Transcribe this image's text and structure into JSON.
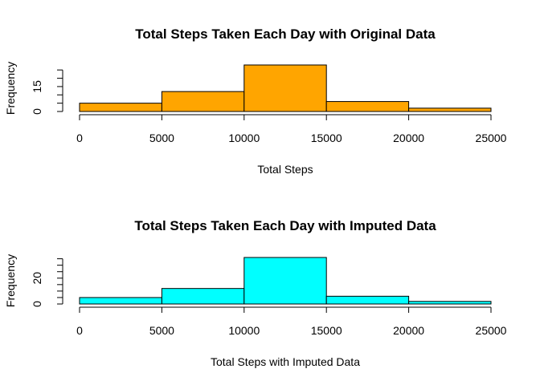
{
  "chart_data": [
    {
      "type": "bar",
      "title": "Total Steps Taken Each Day with Original Data",
      "xlabel": "Total Steps",
      "ylabel": "Frequency",
      "bins": [
        [
          0,
          5000
        ],
        [
          5000,
          10000
        ],
        [
          10000,
          15000
        ],
        [
          15000,
          20000
        ],
        [
          20000,
          25000
        ]
      ],
      "values": [
        5,
        12,
        28,
        6,
        2
      ],
      "xlim": [
        0,
        25000
      ],
      "ylim": [
        0,
        28
      ],
      "xticks": [
        0,
        5000,
        10000,
        15000,
        20000,
        25000
      ],
      "yticks": [
        0,
        5,
        10,
        15,
        20,
        25
      ],
      "ytick_labels": [
        "0",
        "",
        "",
        "15",
        "",
        ""
      ],
      "bar_color": "#FFA500",
      "grid": false
    },
    {
      "type": "bar",
      "title": "Total Steps Taken Each Day with Imputed Data",
      "xlabel": "Total Steps with Imputed Data",
      "ylabel": "Frequency",
      "bins": [
        [
          0,
          5000
        ],
        [
          5000,
          10000
        ],
        [
          10000,
          15000
        ],
        [
          15000,
          20000
        ],
        [
          20000,
          25000
        ]
      ],
      "values": [
        5,
        12,
        36,
        6,
        2
      ],
      "xlim": [
        0,
        25000
      ],
      "ylim": [
        0,
        36
      ],
      "xticks": [
        0,
        5000,
        10000,
        15000,
        20000,
        25000
      ],
      "yticks": [
        0,
        5,
        10,
        15,
        20,
        25,
        30,
        35
      ],
      "ytick_labels": [
        "0",
        "",
        "",
        "",
        "20",
        "",
        "",
        ""
      ],
      "bar_color": "#00FFFF",
      "grid": false
    }
  ]
}
